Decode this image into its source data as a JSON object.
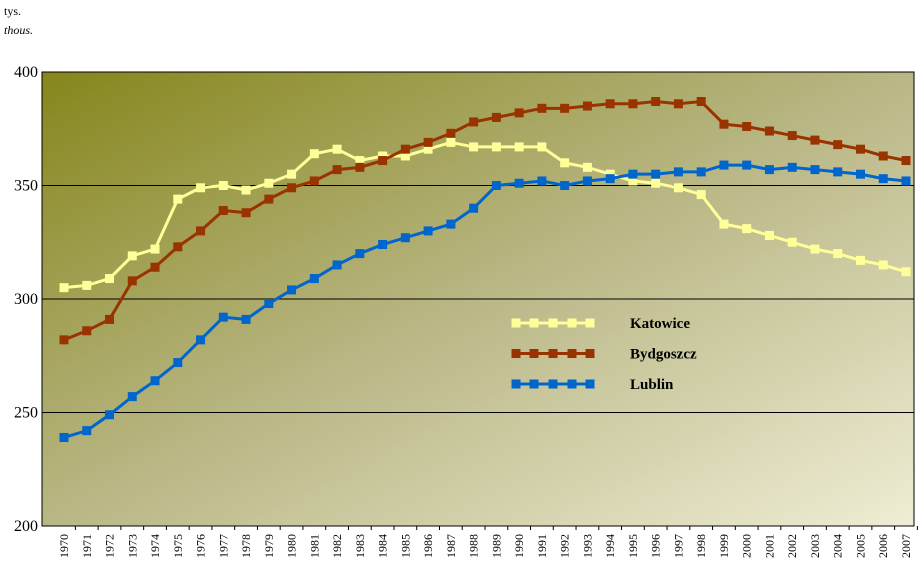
{
  "chart_data": {
    "type": "line",
    "y_label": "tys.",
    "y_label_en": "thous.",
    "categories": [
      "1970",
      "1971",
      "1972",
      "1973",
      "1974",
      "1975",
      "1976",
      "1977",
      "1978",
      "1979",
      "1980",
      "1981",
      "1982",
      "1983",
      "1984",
      "1985",
      "1986",
      "1987",
      "1988",
      "1989",
      "1990",
      "1991",
      "1992",
      "1993",
      "1994",
      "1995",
      "1996",
      "1997",
      "1998",
      "1999",
      "2000",
      "2001",
      "2002",
      "2003",
      "2004",
      "2005",
      "2006",
      "2007"
    ],
    "series": [
      {
        "name": "Katowice",
        "color": "#ffff99",
        "values": [
          305,
          306,
          309,
          319,
          322,
          344,
          349,
          350,
          348,
          351,
          355,
          364,
          366,
          361,
          363,
          363,
          366,
          369,
          367,
          367,
          367,
          367,
          360,
          358,
          355,
          352,
          351,
          349,
          346,
          333,
          331,
          328,
          325,
          322,
          320,
          317,
          315,
          312
        ]
      },
      {
        "name": "Bydgoszcz",
        "color": "#993300",
        "values": [
          282,
          286,
          291,
          308,
          314,
          323,
          330,
          339,
          338,
          344,
          349,
          352,
          357,
          358,
          361,
          366,
          369,
          373,
          378,
          380,
          382,
          384,
          384,
          385,
          386,
          386,
          387,
          386,
          387,
          377,
          376,
          374,
          372,
          370,
          368,
          366,
          363,
          361
        ]
      },
      {
        "name": "Lublin",
        "color": "#0066cc",
        "values": [
          239,
          242,
          249,
          257,
          264,
          272,
          282,
          292,
          291,
          298,
          304,
          309,
          315,
          320,
          324,
          327,
          330,
          333,
          340,
          350,
          351,
          352,
          350,
          352,
          353,
          355,
          355,
          356,
          356,
          359,
          359,
          357,
          358,
          357,
          356,
          355,
          353,
          352
        ]
      }
    ],
    "ylim": [
      200,
      400
    ],
    "yticks": [
      200,
      250,
      300,
      350,
      400
    ],
    "grid": true,
    "legend": "center"
  }
}
